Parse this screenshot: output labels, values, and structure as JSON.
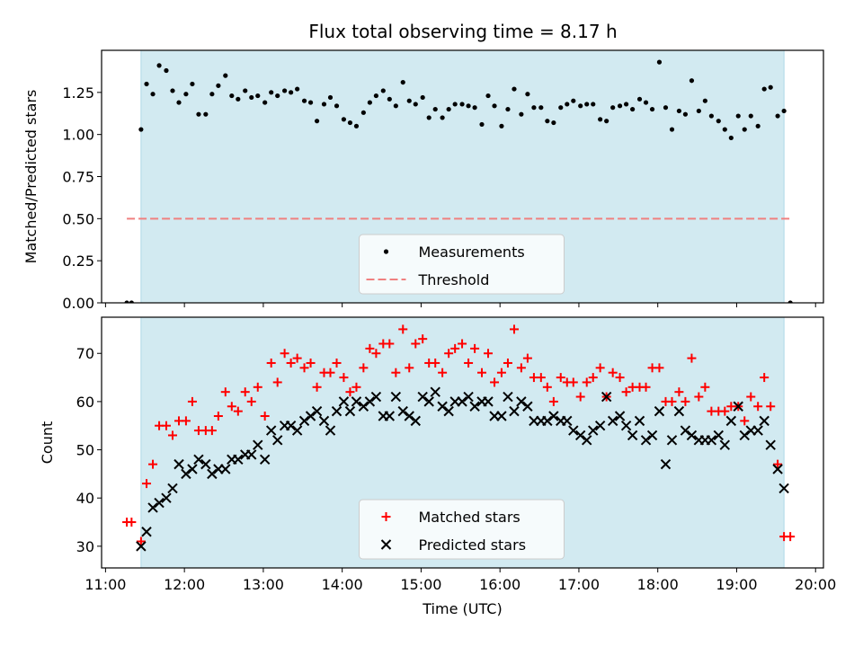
{
  "figure": {
    "title": "Flux total observing time = 8.17 h"
  },
  "colors": {
    "shade": "#add8e6",
    "threshold": "#f08080",
    "matched": "#ff0000",
    "predicted": "#000000",
    "measurement": "#000000"
  },
  "chart_data": [
    {
      "type": "scatter",
      "ylabel": "Matched/Predicted stars",
      "xlim": [
        10.95,
        20.1
      ],
      "ylim": [
        0,
        1.5
      ],
      "yticks": [
        0,
        0.25,
        0.5,
        0.75,
        1.0,
        1.25
      ],
      "ytick_labels": [
        "0.00",
        "0.25",
        "0.50",
        "0.75",
        "1.00",
        "1.25"
      ],
      "shaded_span": [
        11.45,
        19.6
      ],
      "threshold": {
        "label": "Threshold",
        "value": 0.5,
        "x_range": [
          11.27,
          19.67
        ],
        "style": "dashed"
      },
      "legend": {
        "placement": "lower center",
        "entries": [
          "Measurements",
          "Threshold"
        ]
      },
      "series": [
        {
          "name": "Measurements",
          "marker": "dot",
          "x": [
            11.27,
            11.33,
            11.45,
            11.52,
            11.6,
            11.68,
            11.77,
            11.85,
            11.93,
            12.02,
            12.1,
            12.18,
            12.27,
            12.35,
            12.43,
            12.52,
            12.6,
            12.68,
            12.77,
            12.85,
            12.93,
            13.02,
            13.1,
            13.18,
            13.27,
            13.35,
            13.43,
            13.52,
            13.6,
            13.68,
            13.77,
            13.85,
            13.93,
            14.02,
            14.1,
            14.18,
            14.27,
            14.35,
            14.43,
            14.52,
            14.6,
            14.68,
            14.77,
            14.85,
            14.93,
            15.02,
            15.1,
            15.18,
            15.27,
            15.35,
            15.43,
            15.52,
            15.6,
            15.68,
            15.77,
            15.85,
            15.93,
            16.02,
            16.1,
            16.18,
            16.27,
            16.35,
            16.43,
            16.52,
            16.6,
            16.68,
            16.77,
            16.85,
            16.93,
            17.02,
            17.1,
            17.18,
            17.27,
            17.35,
            17.43,
            17.52,
            17.6,
            17.68,
            17.77,
            17.85,
            17.93,
            18.02,
            18.1,
            18.18,
            18.27,
            18.35,
            18.43,
            18.52,
            18.6,
            18.68,
            18.77,
            18.85,
            18.93,
            19.02,
            19.1,
            19.18,
            19.27,
            19.35,
            19.43,
            19.52,
            19.6,
            19.68
          ],
          "y": [
            0.0,
            0.0,
            1.03,
            1.3,
            1.24,
            1.41,
            1.38,
            1.26,
            1.19,
            1.24,
            1.3,
            1.12,
            1.12,
            1.24,
            1.29,
            1.35,
            1.23,
            1.21,
            1.26,
            1.22,
            1.23,
            1.19,
            1.25,
            1.23,
            1.26,
            1.25,
            1.27,
            1.2,
            1.19,
            1.08,
            1.18,
            1.22,
            1.17,
            1.09,
            1.07,
            1.05,
            1.13,
            1.19,
            1.23,
            1.26,
            1.21,
            1.17,
            1.31,
            1.2,
            1.18,
            1.22,
            1.1,
            1.15,
            1.1,
            1.15,
            1.18,
            1.18,
            1.17,
            1.16,
            1.06,
            1.23,
            1.17,
            1.05,
            1.15,
            1.27,
            1.12,
            1.24,
            1.16,
            1.16,
            1.08,
            1.07,
            1.16,
            1.18,
            1.2,
            1.17,
            1.18,
            1.18,
            1.09,
            1.08,
            1.16,
            1.17,
            1.18,
            1.15,
            1.21,
            1.19,
            1.15,
            1.43,
            1.16,
            1.03,
            1.14,
            1.12,
            1.32,
            1.14,
            1.2,
            1.11,
            1.08,
            1.03,
            0.98,
            1.11,
            1.03,
            1.11,
            1.05,
            1.27,
            1.28,
            1.11,
            1.14,
            0.0
          ]
        }
      ]
    },
    {
      "type": "scatter",
      "xlabel": "Time (UTC)",
      "ylabel": "Count",
      "xlim": [
        10.95,
        20.1
      ],
      "ylim": [
        25.5,
        77.5
      ],
      "yticks": [
        30,
        40,
        50,
        60,
        70
      ],
      "ytick_labels": [
        "30",
        "40",
        "50",
        "60",
        "70"
      ],
      "xticks": [
        11,
        12,
        13,
        14,
        15,
        16,
        17,
        18,
        19,
        20
      ],
      "xtick_labels": [
        "11:00",
        "12:00",
        "13:00",
        "14:00",
        "15:00",
        "16:00",
        "17:00",
        "18:00",
        "19:00",
        "20:00"
      ],
      "shaded_span": [
        11.45,
        19.6
      ],
      "legend": {
        "placement": "lower center",
        "entries": [
          "Matched stars",
          "Predicted stars"
        ]
      },
      "series": [
        {
          "name": "Matched stars",
          "marker": "plus",
          "x": [
            11.27,
            11.33,
            11.45,
            11.52,
            11.6,
            11.68,
            11.77,
            11.85,
            11.93,
            12.02,
            12.1,
            12.18,
            12.27,
            12.35,
            12.43,
            12.52,
            12.6,
            12.68,
            12.77,
            12.85,
            12.93,
            13.02,
            13.1,
            13.18,
            13.27,
            13.35,
            13.43,
            13.52,
            13.6,
            13.68,
            13.77,
            13.85,
            13.93,
            14.02,
            14.1,
            14.18,
            14.27,
            14.35,
            14.43,
            14.52,
            14.6,
            14.68,
            14.77,
            14.85,
            14.93,
            15.02,
            15.1,
            15.18,
            15.27,
            15.35,
            15.43,
            15.52,
            15.6,
            15.68,
            15.77,
            15.85,
            15.93,
            16.02,
            16.1,
            16.18,
            16.27,
            16.35,
            16.43,
            16.52,
            16.6,
            16.68,
            16.77,
            16.85,
            16.93,
            17.02,
            17.1,
            17.18,
            17.27,
            17.35,
            17.43,
            17.52,
            17.6,
            17.68,
            17.77,
            17.85,
            17.93,
            18.02,
            18.1,
            18.18,
            18.27,
            18.35,
            18.43,
            18.52,
            18.6,
            18.68,
            18.77,
            18.85,
            18.93,
            19.02,
            19.1,
            19.18,
            19.27,
            19.35,
            19.43,
            19.52,
            19.6,
            19.68
          ],
          "y": [
            35,
            35,
            31,
            43,
            47,
            55,
            55,
            53,
            56,
            56,
            60,
            54,
            54,
            54,
            57,
            62,
            59,
            58,
            62,
            60,
            63,
            57,
            68,
            64,
            70,
            68,
            69,
            67,
            68,
            63,
            66,
            66,
            68,
            65,
            62,
            63,
            67,
            71,
            70,
            72,
            72,
            66,
            75,
            67,
            72,
            73,
            68,
            68,
            66,
            70,
            71,
            72,
            68,
            71,
            66,
            70,
            64,
            66,
            68,
            75,
            67,
            69,
            65,
            65,
            63,
            60,
            65,
            64,
            64,
            61,
            64,
            65,
            67,
            61,
            66,
            65,
            62,
            63,
            63,
            63,
            67,
            67,
            60,
            60,
            62,
            60,
            69,
            61,
            63,
            58,
            58,
            58,
            59,
            59,
            56,
            61,
            59,
            65,
            59,
            47,
            32,
            32
          ]
        },
        {
          "name": "Predicted stars",
          "marker": "x",
          "x": [
            11.45,
            11.52,
            11.6,
            11.68,
            11.77,
            11.85,
            11.93,
            12.02,
            12.1,
            12.18,
            12.27,
            12.35,
            12.43,
            12.52,
            12.6,
            12.68,
            12.77,
            12.85,
            12.93,
            13.02,
            13.1,
            13.18,
            13.27,
            13.35,
            13.43,
            13.52,
            13.6,
            13.68,
            13.77,
            13.85,
            13.93,
            14.02,
            14.1,
            14.18,
            14.27,
            14.35,
            14.43,
            14.52,
            14.6,
            14.68,
            14.77,
            14.85,
            14.93,
            15.02,
            15.1,
            15.18,
            15.27,
            15.35,
            15.43,
            15.52,
            15.6,
            15.68,
            15.77,
            15.85,
            15.93,
            16.02,
            16.1,
            16.18,
            16.27,
            16.35,
            16.43,
            16.52,
            16.6,
            16.68,
            16.77,
            16.85,
            16.93,
            17.02,
            17.1,
            17.18,
            17.27,
            17.35,
            17.43,
            17.52,
            17.6,
            17.68,
            17.77,
            17.85,
            17.93,
            18.02,
            18.1,
            18.18,
            18.27,
            18.35,
            18.43,
            18.52,
            18.6,
            18.68,
            18.77,
            18.85,
            18.93,
            19.02,
            19.1,
            19.18,
            19.27,
            19.35,
            19.43,
            19.52,
            19.6
          ],
          "y": [
            30,
            33,
            38,
            39,
            40,
            42,
            47,
            45,
            46,
            48,
            47,
            45,
            46,
            46,
            48,
            48,
            49,
            49,
            51,
            48,
            54,
            52,
            55,
            55,
            54,
            56,
            57,
            58,
            56,
            54,
            58,
            60,
            58,
            60,
            59,
            60,
            61,
            57,
            57,
            61,
            58,
            57,
            56,
            61,
            60,
            62,
            59,
            58,
            60,
            60,
            61,
            59,
            60,
            60,
            57,
            57,
            61,
            58,
            60,
            59,
            56,
            56,
            56,
            57,
            56,
            56,
            54,
            53,
            52,
            54,
            55,
            61,
            56,
            57,
            55,
            53,
            56,
            52,
            53,
            58,
            47,
            52,
            58,
            54,
            53,
            52,
            52,
            52,
            53,
            51,
            56,
            59,
            53,
            54,
            54,
            56,
            51,
            46,
            42
          ]
        }
      ]
    }
  ]
}
